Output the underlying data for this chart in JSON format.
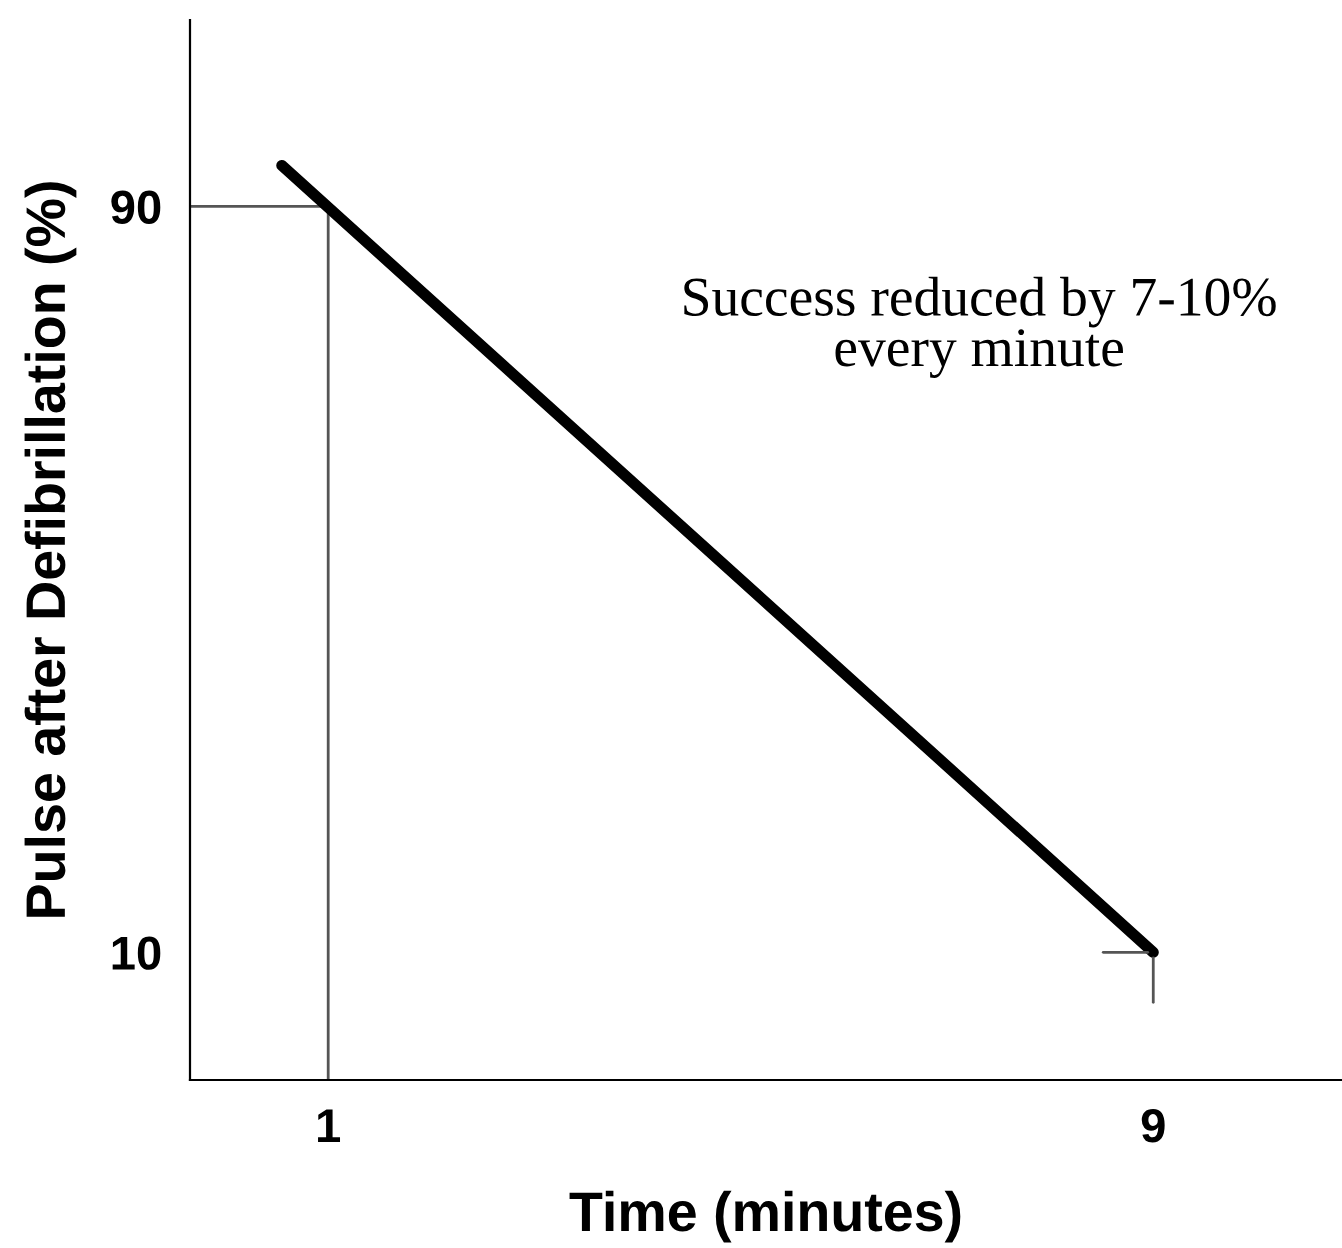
{
  "chart_data": {
    "type": "line",
    "xlabel": "Time (minutes)",
    "ylabel": "Pulse after Defibrillation (%)",
    "x": [
      0.55,
      9
    ],
    "series": [
      {
        "color": "#000000",
        "values": [
          94.4,
          10
        ]
      }
    ],
    "xlim": [
      -0.34,
      10.83
    ],
    "ylim": [
      -3.7,
      110
    ],
    "xticks": [
      1,
      9
    ],
    "yticks": [
      90,
      10
    ],
    "ref_lines": [
      {
        "axis": "x",
        "value": 1,
        "color": "#555555"
      },
      {
        "axis": "y",
        "value": 90,
        "color": "#555555"
      }
    ],
    "annotations": [
      "Success reduced by 7-10%\nevery minute"
    ],
    "grid": false,
    "legend": false,
    "marker": "none",
    "line_style": "solid"
  }
}
